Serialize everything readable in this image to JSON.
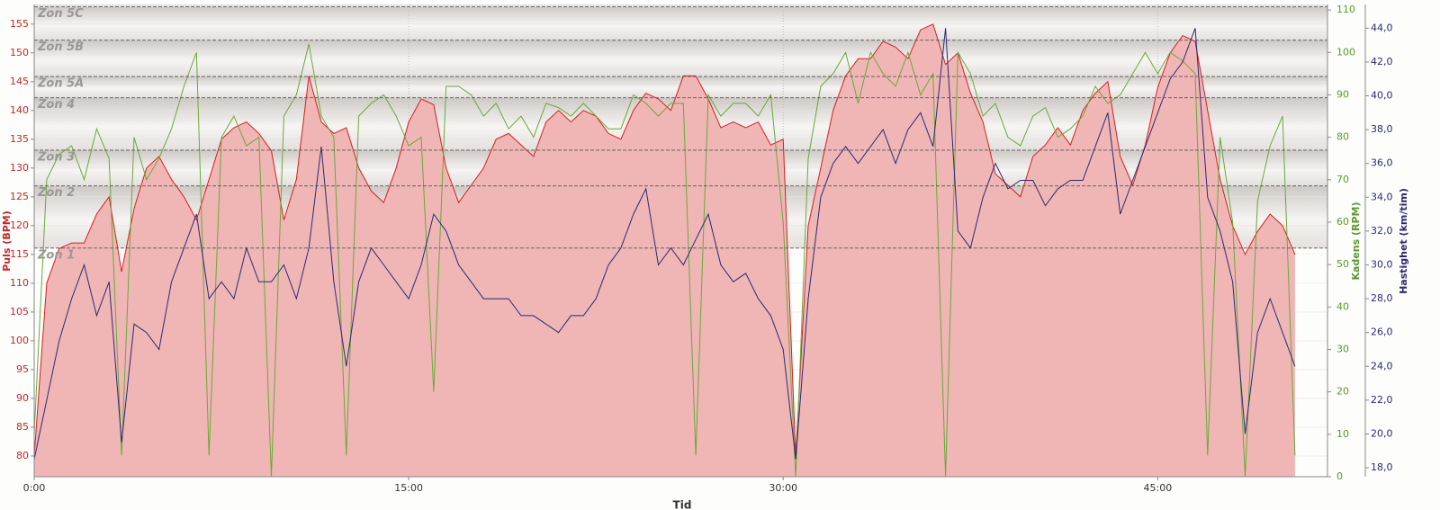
{
  "chart_data": {
    "type": "line",
    "x_label": "Tid",
    "xlim": [
      0,
      51.8
    ],
    "xticks": [
      {
        "value": 0,
        "label": "0:00"
      },
      {
        "value": 15,
        "label": "15:00"
      },
      {
        "value": 30,
        "label": "30:00"
      },
      {
        "value": 45,
        "label": "45:00"
      }
    ],
    "ylabel": "Puls (BPM)",
    "ylim": [
      76.4,
      158.4
    ],
    "yticks": [
      80,
      85,
      90,
      95,
      100,
      105,
      110,
      115,
      120,
      125,
      130,
      135,
      140,
      145,
      150,
      155
    ],
    "y2label": "Kadens (RPM)",
    "y2lim": [
      0,
      111.3
    ],
    "y2ticks": [
      0,
      10,
      20,
      30,
      40,
      50,
      60,
      70,
      80,
      90,
      100,
      110
    ],
    "y3label": "Hastighet (km/tim)",
    "y3lim": [
      17.47,
      45.4
    ],
    "y3ticks": [
      {
        "value": 18,
        "label": "18,0"
      },
      {
        "value": 20,
        "label": "20,0"
      },
      {
        "value": 22,
        "label": "22,0"
      },
      {
        "value": 24,
        "label": "24,0"
      },
      {
        "value": 26,
        "label": "26,0"
      },
      {
        "value": 28,
        "label": "28,0"
      },
      {
        "value": 30,
        "label": "30,0"
      },
      {
        "value": 32,
        "label": "32,0"
      },
      {
        "value": 34,
        "label": "34,0"
      },
      {
        "value": 36,
        "label": "36,0"
      },
      {
        "value": 38,
        "label": "38,0"
      },
      {
        "value": 40,
        "label": "40,0"
      },
      {
        "value": 42,
        "label": "42,0"
      },
      {
        "value": 44,
        "label": "44,0"
      }
    ],
    "grid": true,
    "zones": [
      {
        "name": "Zon 1",
        "value": 116.1
      },
      {
        "name": "Zon 2",
        "value": 126.9
      },
      {
        "name": "Zon 3",
        "value": 133.1
      },
      {
        "name": "Zon 4",
        "value": 142.2
      },
      {
        "name": "Zon 5A",
        "value": 145.9
      },
      {
        "name": "Zon 5B",
        "value": 152.2
      },
      {
        "name": "Zon 5C",
        "value": 158
      }
    ],
    "x": [
      0,
      0.5,
      1,
      1.5,
      2,
      2.5,
      3,
      3.5,
      4,
      4.5,
      5,
      5.5,
      6,
      6.5,
      7,
      7.5,
      8,
      8.5,
      9,
      9.5,
      10,
      10.5,
      11,
      11.5,
      12,
      12.5,
      13,
      13.5,
      14,
      14.5,
      15,
      15.5,
      16,
      16.5,
      17,
      17.5,
      18,
      18.5,
      19,
      19.5,
      20,
      20.5,
      21,
      21.5,
      22,
      22.5,
      23,
      23.5,
      24,
      24.5,
      25,
      25.5,
      26,
      26.5,
      27,
      27.5,
      28,
      28.5,
      29,
      29.5,
      30,
      30.5,
      31,
      31.5,
      32,
      32.5,
      33,
      33.5,
      34,
      34.5,
      35,
      35.5,
      36,
      36.5,
      37,
      37.5,
      38,
      38.5,
      39,
      39.5,
      40,
      40.5,
      41,
      41.5,
      42,
      42.5,
      43,
      43.5,
      44,
      44.5,
      45,
      45.5,
      46,
      46.5,
      47,
      47.5,
      48,
      48.5,
      49,
      49.5,
      50,
      50.5
    ],
    "series": [
      {
        "name": "Puls",
        "type": "area",
        "axis": "y",
        "color": "#d42020",
        "fill": "#f0b6b6",
        "values": [
          80,
          110,
          116,
          117,
          117,
          122,
          125,
          112,
          123,
          130,
          132,
          128,
          125,
          121,
          128,
          135,
          137,
          138,
          136,
          133,
          121,
          128,
          146,
          138,
          136,
          137,
          130,
          126,
          124,
          130,
          138,
          142,
          141,
          130,
          124,
          127,
          130,
          135,
          136,
          134,
          132,
          138,
          140,
          138,
          140,
          139,
          136,
          135,
          140,
          143,
          142,
          140,
          146,
          146,
          142,
          137,
          138,
          137,
          138,
          134,
          135,
          80,
          120,
          130,
          140,
          146,
          149,
          149,
          152,
          151,
          149,
          154,
          155,
          148,
          150,
          143,
          138,
          129,
          127,
          125,
          132,
          134,
          137,
          134,
          140,
          143,
          145,
          132,
          127,
          134,
          144,
          150,
          153,
          152,
          140,
          128,
          120,
          115,
          119,
          122,
          120,
          115
        ]
      },
      {
        "name": "Kadens",
        "type": "line",
        "axis": "y2",
        "color": "#6aa83a",
        "values": [
          10,
          70,
          76,
          78,
          70,
          82,
          75,
          5,
          80,
          70,
          75,
          82,
          92,
          100,
          5,
          80,
          85,
          78,
          80,
          0,
          85,
          90,
          102,
          85,
          80,
          5,
          85,
          88,
          90,
          85,
          78,
          80,
          20,
          92,
          92,
          90,
          85,
          88,
          82,
          85,
          80,
          88,
          87,
          85,
          88,
          85,
          82,
          82,
          90,
          88,
          85,
          88,
          88,
          5,
          90,
          85,
          88,
          88,
          85,
          90,
          60,
          0,
          75,
          92,
          95,
          100,
          88,
          100,
          95,
          92,
          100,
          90,
          95,
          0,
          100,
          95,
          85,
          88,
          80,
          78,
          85,
          87,
          80,
          82,
          85,
          92,
          88,
          90,
          95,
          100,
          95,
          100,
          98,
          95,
          5,
          80,
          60,
          0,
          65,
          78,
          85,
          5
        ]
      },
      {
        "name": "Hastighet",
        "type": "line",
        "axis": "y3",
        "color": "#2a2a72",
        "values": [
          18.5,
          22,
          25.5,
          28,
          30,
          27,
          29,
          19.5,
          26.5,
          26,
          25,
          29,
          31,
          33,
          28,
          29,
          28,
          31,
          29,
          29,
          30,
          28,
          31,
          37,
          29,
          24,
          29,
          31,
          30,
          29,
          28,
          30,
          33,
          32,
          30,
          29,
          28,
          28,
          28,
          27,
          27,
          26.5,
          26,
          27,
          27,
          28,
          30,
          31,
          33,
          34.5,
          30,
          31,
          30,
          31.5,
          33,
          30,
          29,
          29.5,
          28,
          27,
          25,
          18.5,
          28,
          34,
          36,
          37,
          36,
          37,
          38,
          36,
          38,
          39,
          37,
          44,
          32,
          31,
          34,
          36,
          34.5,
          35,
          35,
          33.5,
          34.5,
          35,
          35,
          37,
          39,
          33,
          35,
          37,
          39,
          41,
          42,
          44,
          34,
          32,
          29,
          20,
          26,
          28,
          26,
          24
        ]
      }
    ]
  }
}
